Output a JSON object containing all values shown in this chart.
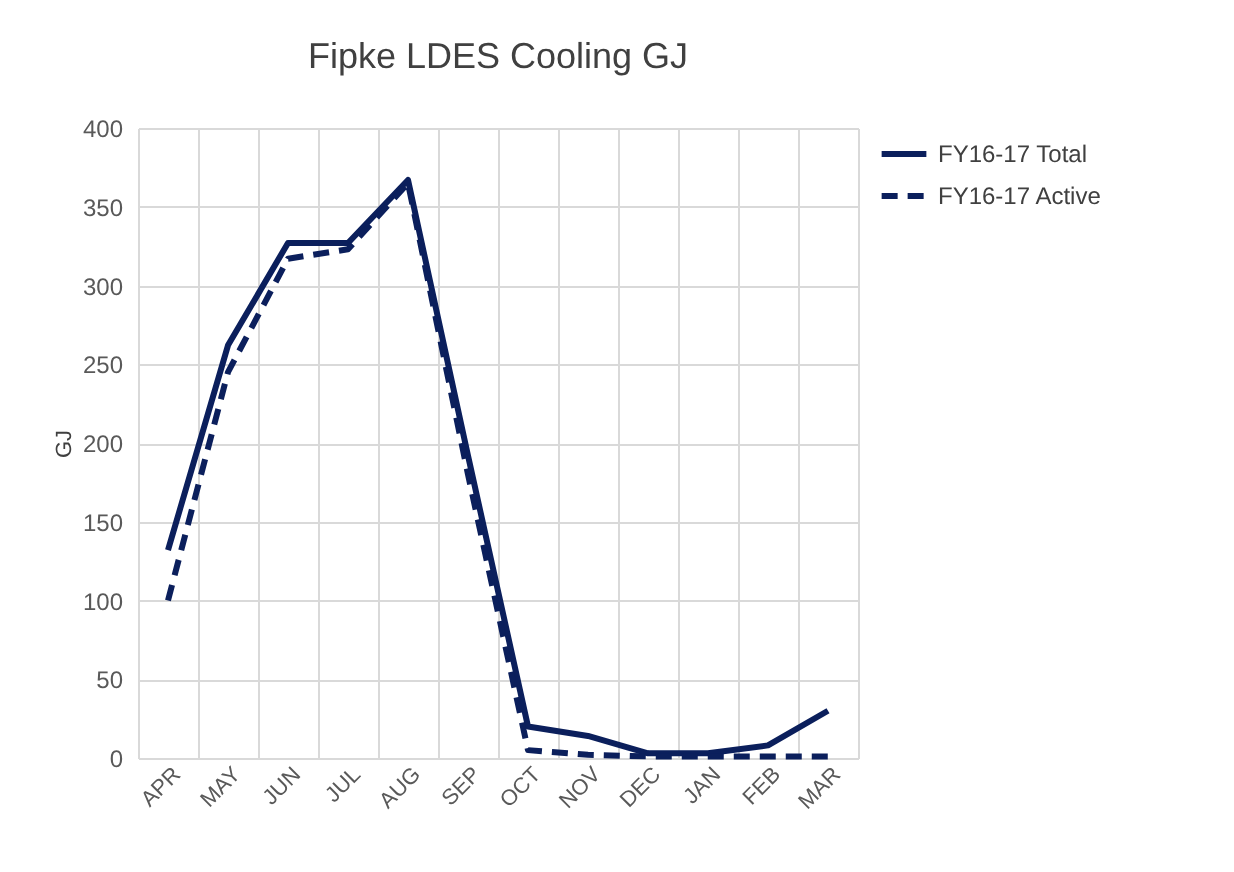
{
  "chart_data": {
    "type": "line",
    "title": "Fipke LDES Cooling GJ",
    "ylabel": "GJ",
    "categories": [
      "APR",
      "MAY",
      "JUN",
      "JUL",
      "AUG",
      "SEP",
      "OCT",
      "NOV",
      "DEC",
      "JAN",
      "FEB",
      "MAR"
    ],
    "series": [
      {
        "name": "FY16-17 Total",
        "color": "#0b1f5c",
        "line_style": "solid",
        "values": [
          132,
          262,
          327,
          327,
          367,
          192,
          20,
          14,
          3,
          3,
          8,
          30
        ]
      },
      {
        "name": "FY16-17 Active",
        "color": "#0b1f5c",
        "line_style": "dashed",
        "values": [
          100,
          245,
          317,
          323,
          365,
          180,
          5,
          2,
          1,
          1,
          1,
          1
        ]
      }
    ],
    "ylim": [
      0,
      400
    ],
    "yticks": [
      0,
      50,
      100,
      150,
      200,
      250,
      300,
      350,
      400
    ],
    "grid": true,
    "legend": "right",
    "marker": "none"
  }
}
